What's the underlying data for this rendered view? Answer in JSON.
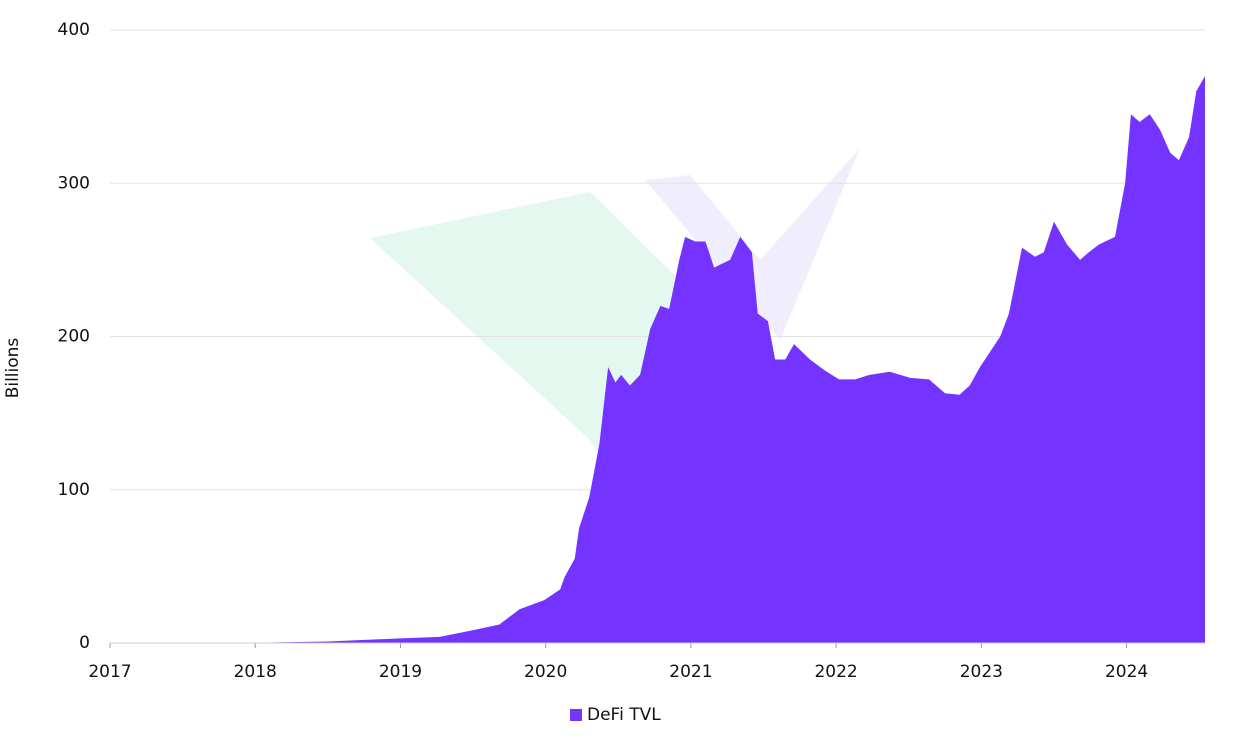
{
  "chart_data": {
    "type": "area",
    "y_label": "Billions",
    "x": [
      2017.0,
      2017.9,
      2018.5,
      2019.0,
      2019.27,
      2019.48,
      2019.68,
      2019.82,
      2019.99,
      2020.1,
      2020.13,
      2020.2,
      2020.23,
      2020.3,
      2020.37,
      2020.43,
      2020.48,
      2020.52,
      2020.58,
      2020.65,
      2020.72,
      2020.79,
      2020.85,
      2020.92,
      2020.96,
      2021.03,
      2021.1,
      2021.16,
      2021.27,
      2021.34,
      2021.42,
      2021.46,
      2021.53,
      2021.58,
      2021.65,
      2021.71,
      2021.82,
      2021.92,
      2022.02,
      2022.13,
      2022.23,
      2022.37,
      2022.51,
      2022.64,
      2022.75,
      2022.85,
      2022.92,
      2022.99,
      2023.06,
      2023.13,
      2023.19,
      2023.28,
      2023.37,
      2023.43,
      2023.5,
      2023.59,
      2023.68,
      2023.74,
      2023.81,
      2023.92,
      2023.99,
      2024.03,
      2024.09,
      2024.16,
      2024.23,
      2024.3,
      2024.36,
      2024.43,
      2024.48,
      2024.54
    ],
    "series": [
      {
        "name": "DeFi TVL",
        "color": "#7433ff",
        "values": [
          0,
          0,
          1,
          3,
          4,
          8,
          12,
          22,
          28,
          35,
          43,
          55,
          75,
          95,
          130,
          180,
          170,
          175,
          168,
          175,
          205,
          220,
          218,
          250,
          265,
          262,
          262,
          245,
          250,
          265,
          255,
          215,
          210,
          185,
          185,
          195,
          185,
          178,
          172,
          172,
          175,
          177,
          173,
          172,
          163,
          162,
          168,
          180,
          190,
          200,
          215,
          258,
          252,
          255,
          275,
          260,
          250,
          255,
          260,
          265,
          300,
          345,
          340,
          345,
          335,
          320,
          315,
          330,
          360,
          370
        ]
      }
    ],
    "xlim": [
      2017,
      2024.54
    ],
    "xticks": [
      2017,
      2018,
      2019,
      2020,
      2021,
      2022,
      2023,
      2024
    ],
    "ylim": [
      0,
      400
    ],
    "yticks": [
      0,
      100,
      200,
      300,
      400
    ],
    "grid": true,
    "legend": "bottom"
  }
}
